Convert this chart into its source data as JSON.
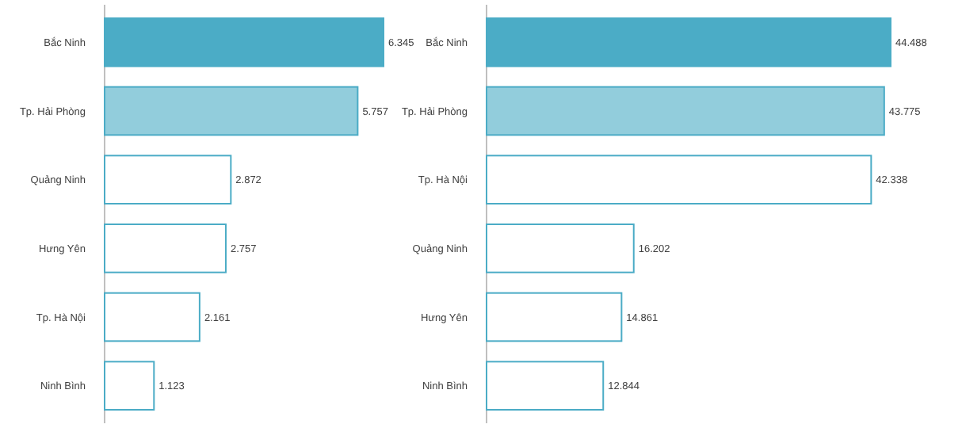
{
  "chart_data": [
    {
      "type": "bar",
      "orientation": "horizontal",
      "categories": [
        "Bắc Ninh",
        "Tp. Hải Phòng",
        "Quảng Ninh",
        "Hưng Yên",
        "Tp. Hà Nội",
        "Ninh Bình"
      ],
      "values": [
        6.345,
        5.757,
        2.872,
        2.757,
        2.161,
        1.123
      ],
      "colors": [
        "#4bacc6",
        "#92cddc",
        "#ffffff",
        "#ffffff",
        "#ffffff",
        "#ffffff"
      ],
      "data_labels": true
    },
    {
      "type": "bar",
      "orientation": "horizontal",
      "categories": [
        "Bắc Ninh",
        "Tp. Hải Phòng",
        "Tp. Hà Nội",
        "Quảng Ninh",
        "Hưng Yên",
        "Ninh Bình"
      ],
      "values": [
        44.488,
        43.775,
        42.338,
        16.202,
        14.861,
        12.844
      ],
      "colors": [
        "#4bacc6",
        "#92cddc",
        "#ffffff",
        "#ffffff",
        "#ffffff",
        "#ffffff"
      ],
      "data_labels": true
    }
  ]
}
